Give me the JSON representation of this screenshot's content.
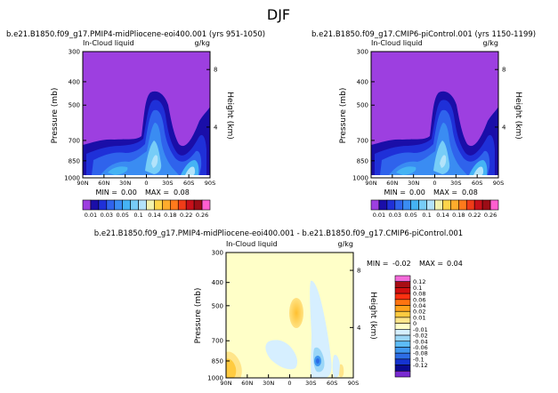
{
  "figure_title": "DJF",
  "colors": {
    "background_field": "#9d3fe0",
    "anomaly_background": "#ffffc8",
    "base_palette": [
      "#9d3fe0",
      "#1a0ea8",
      "#1f30d8",
      "#2f63ec",
      "#3a8cf2",
      "#45b3f4",
      "#77cdf7",
      "#b3e3fa",
      "#f2f2ae",
      "#ffd54a",
      "#ffac2c",
      "#ff7a1c",
      "#f03c18",
      "#c8101a",
      "#9c0d16",
      "#ff5fd0"
    ],
    "diff_palette": [
      "#7a2bd1",
      "#0a0a90",
      "#1533d0",
      "#2d6de6",
      "#3f97f0",
      "#5dbcf6",
      "#9ad6f7",
      "#d6efff",
      "#ffffc8",
      "#ffe58a",
      "#ffcb40",
      "#ffa31c",
      "#ff7411",
      "#ff3010",
      "#d20f10",
      "#a80d14",
      "#f26ad9"
    ]
  },
  "chart_data": [
    {
      "type": "heatmap",
      "title": "b.e21.B1850.f09_g17.PMIP4-midPliocene-eoi400.001  (yrs 951-1050)",
      "field": "In-Cloud liquid",
      "units": "g/kg",
      "ylabel": "Pressure (mb)",
      "y2label": "Height (km)",
      "x_ticks": [
        "90N",
        "60N",
        "30N",
        "0",
        "30S",
        "60S",
        "90S"
      ],
      "y_ticks": [
        "300",
        "400",
        "500",
        "700",
        "850",
        "1000"
      ],
      "y2_ticks": [
        "8",
        "4"
      ],
      "min_label": "MIN =",
      "min_value": "0.00",
      "max_label": "MAX =",
      "max_value": "0.08",
      "colorbar_labels": [
        "0.01",
        "0.03",
        "0.05",
        "0.1",
        "0.14",
        "0.18",
        "0.22",
        "0.26"
      ]
    },
    {
      "type": "heatmap",
      "title": "b.e21.B1850.f09_g17.CMIP6-piControl.001  (yrs 1150-1199)",
      "field": "In-Cloud liquid",
      "units": "g/kg",
      "ylabel": "Pressure (mb)",
      "y2label": "Height (km)",
      "x_ticks": [
        "90N",
        "60N",
        "30N",
        "0",
        "30S",
        "60S",
        "90S"
      ],
      "y_ticks": [
        "300",
        "400",
        "500",
        "700",
        "850",
        "1000"
      ],
      "y2_ticks": [
        "8",
        "4"
      ],
      "min_label": "MIN =",
      "min_value": "0.00",
      "max_label": "MAX =",
      "max_value": "0.08",
      "colorbar_labels": [
        "0.01",
        "0.03",
        "0.05",
        "0.1",
        "0.14",
        "0.18",
        "0.22",
        "0.26"
      ]
    },
    {
      "type": "heatmap",
      "title": "b.e21.B1850.f09_g17.PMIP4-midPliocene-eoi400.001  -  b.e21.B1850.f09_g17.CMIP6-piControl.001",
      "field": "In-Cloud liquid",
      "units": "g/kg",
      "ylabel": "Pressure (mb)",
      "y2label": "Height (km)",
      "x_ticks": [
        "90N",
        "60N",
        "30N",
        "0",
        "30S",
        "60S",
        "90S"
      ],
      "y_ticks": [
        "300",
        "400",
        "500",
        "700",
        "850",
        "1000"
      ],
      "y2_ticks": [
        "8",
        "4"
      ],
      "min_label": "MIN =",
      "min_value": "-0.02",
      "max_label": "MAX =",
      "max_value": "0.04",
      "colorbar_labels": [
        "0.12",
        "0.1",
        "0.08",
        "0.06",
        "0.04",
        "0.02",
        "0.01",
        "0",
        "-0.01",
        "-0.02",
        "-0.04",
        "-0.06",
        "-0.08",
        "-0.1",
        "-0.12"
      ]
    }
  ]
}
